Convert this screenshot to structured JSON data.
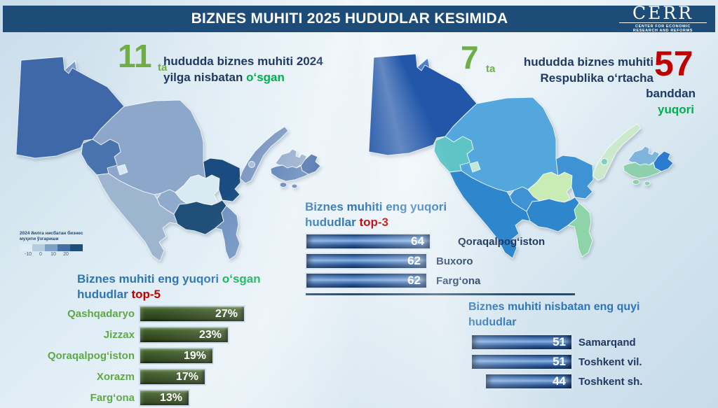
{
  "header": {
    "title": "BIZNES MUHITI 2025 HUDUDLAR KESIMIDA",
    "logo": {
      "name": "CERR",
      "subtitle_line1": "CENTER FOR ECONOMIC",
      "subtitle_line2": "RESEARCH AND REFORMS"
    }
  },
  "stats": {
    "left": {
      "number": "11",
      "suffix": "ta",
      "line1": "hududda biznes muhiti 2024",
      "line2": "yilga nisbatan",
      "highlight": "oʻsgan"
    },
    "right": {
      "number": "7",
      "suffix": "ta",
      "line1": "hududda biznes muhiti",
      "line2": "Respublika oʻrtacha",
      "big_number": "57",
      "line3": "banddan",
      "highlight": "yuqori"
    }
  },
  "legend": {
    "title_line1": "2024 йилга нисбатан бизнес",
    "title_line2": "муҳити ўзгариши",
    "colors": [
      "#DEEDF3",
      "#B5CEDF",
      "#7FA1C5",
      "#446FA5",
      "#1F4E79"
    ],
    "ticks": [
      "-10",
      "0",
      "10",
      "20"
    ]
  },
  "charts": {
    "top3": {
      "title_line1": "Biznes muhiti eng yuqori",
      "title_line2": "hududlar",
      "badge": "top-3",
      "rows": [
        {
          "label": "Qoraqalpogʻiston",
          "value": 64,
          "display": "64"
        },
        {
          "label": "Buxoro",
          "value": 62,
          "display": "62"
        },
        {
          "label": "Fargʻona",
          "value": 62,
          "display": "62"
        }
      ]
    },
    "top5": {
      "title_line1": "Biznes muhiti eng yuqori",
      "title_highlight": "oʻsgan",
      "title_line2": "hududlar",
      "badge": "top-5",
      "rows": [
        {
          "label": "Qashqadaryo",
          "value": 27,
          "display": "27%"
        },
        {
          "label": "Jizzax",
          "value": 23,
          "display": "23%"
        },
        {
          "label": "Qoraqalpogʻiston",
          "value": 19,
          "display": "19%"
        },
        {
          "label": "Xorazm",
          "value": 17,
          "display": "17%"
        },
        {
          "label": "Fargʻona",
          "value": 13,
          "display": "13%"
        }
      ]
    },
    "lowest": {
      "title_line1": "Biznes muhiti nisbatan eng quyi",
      "title_line2": "hududlar",
      "rows": [
        {
          "label": "Samarqand",
          "value": 51,
          "display": "51"
        },
        {
          "label": "Toshkent vil.",
          "value": 51,
          "display": "51"
        },
        {
          "label": "Toshkent sh.",
          "value": 44,
          "display": "44"
        }
      ]
    }
  },
  "maps": {
    "left": {
      "caption": "11 ta hududda biznes muhiti 2024 yilga nisbatan oʻsgan",
      "regions": {
        "qoraqalpogiston": "#3F68A9",
        "aral_sea": "#7C9BC7",
        "xorazm": "#4A74AE",
        "xorazm_enclave": "#D6E8F2",
        "navoiy": "#8CA7C9",
        "buxoro": "#9EB5D0",
        "samarqand": "#90AACB",
        "jizzax": "#D9EAF3",
        "sirdaryo": "#1A4C82",
        "toshkent_vil": "#7E99C2",
        "toshkent_sh": "#A9BFD8",
        "namangan": "#8FA9CB",
        "andijon": "#3E66A4",
        "fargona": "#5A80B5",
        "islands": "#5A80B5",
        "surxondaryo": "#6F92BF",
        "qashqadaryo": "#1F4E79"
      }
    },
    "right": {
      "caption": "7 ta hududda biznes muhiti Respublika oʻrtacha 57 banddan yuqori",
      "regions": {
        "qoraqalpogiston": "#2156A8",
        "aral_sea": "#4F80C8",
        "xorazm": "#5FC4C6",
        "xorazm_enclave": "#BFE8D8",
        "navoiy": "#54A7DC",
        "buxoro": "#2E86CC",
        "samarqand": "#3F93D4",
        "jizzax": "#C9EBB4",
        "sirdaryo": "#3F93D4",
        "toshkent_vil": "#CBEACB",
        "toshkent_sh": "#7FCDC0",
        "namangan": "#7FB4DC",
        "andijon": "#2B7CD0",
        "fargona": "#8FD0AC",
        "islands": "#8FD0AC",
        "surxondaryo": "#8FD4A8",
        "qashqadaryo": "#2E86CC"
      }
    }
  },
  "chart_data": [
    {
      "type": "bar",
      "orientation": "horizontal",
      "title": "Biznes muhiti eng yuqori hududlar top-3",
      "categories": [
        "Qoraqalpogʻiston",
        "Buxoro",
        "Fargʻona"
      ],
      "values": [
        64,
        62,
        62
      ],
      "value_labels": [
        "64",
        "62",
        "62"
      ],
      "bar_color": "#2E5E9E",
      "value_position": "inside-right",
      "legend_position": "none"
    },
    {
      "type": "bar",
      "orientation": "horizontal",
      "title": "Biznes muhiti eng yuqori oʻsgan hududlar top-5",
      "categories": [
        "Qashqadaryo",
        "Jizzax",
        "Qoraqalpogʻiston",
        "Xorazm",
        "Fargʻona"
      ],
      "values": [
        27,
        23,
        19,
        17,
        13
      ],
      "unit": "%",
      "value_labels": [
        "27%",
        "23%",
        "19%",
        "17%",
        "13%"
      ],
      "bar_color": "#375623",
      "value_position": "inside-right",
      "legend_position": "none"
    },
    {
      "type": "bar",
      "orientation": "horizontal",
      "align": "right",
      "title": "Biznes muhiti nisbatan eng quyi hududlar",
      "categories": [
        "Samarqand",
        "Toshkent vil.",
        "Toshkent sh."
      ],
      "values": [
        51,
        51,
        44
      ],
      "value_labels": [
        "51",
        "51",
        "44"
      ],
      "bar_color": "#2E5E9E",
      "value_position": "inside-right",
      "legend_position": "none"
    },
    {
      "type": "heatmap",
      "subtype": "choropleth_map",
      "title": "11 ta hududda biznes muhiti 2024 yilga nisbatan oʻsgan",
      "legend_title": "2024 йилга нисбатан бизнес муҳити ўзгариши",
      "legend_ticks": [
        -10,
        0,
        10,
        20
      ],
      "legend_colors": [
        "#DEEDF3",
        "#B5CEDF",
        "#7FA1C5",
        "#446FA5",
        "#1F4E79"
      ]
    },
    {
      "type": "heatmap",
      "subtype": "choropleth_map",
      "title": "7 ta hududda biznes muhiti Respublika oʻrtacha 57 banddan yuqori",
      "highlight_value": 57
    }
  ]
}
